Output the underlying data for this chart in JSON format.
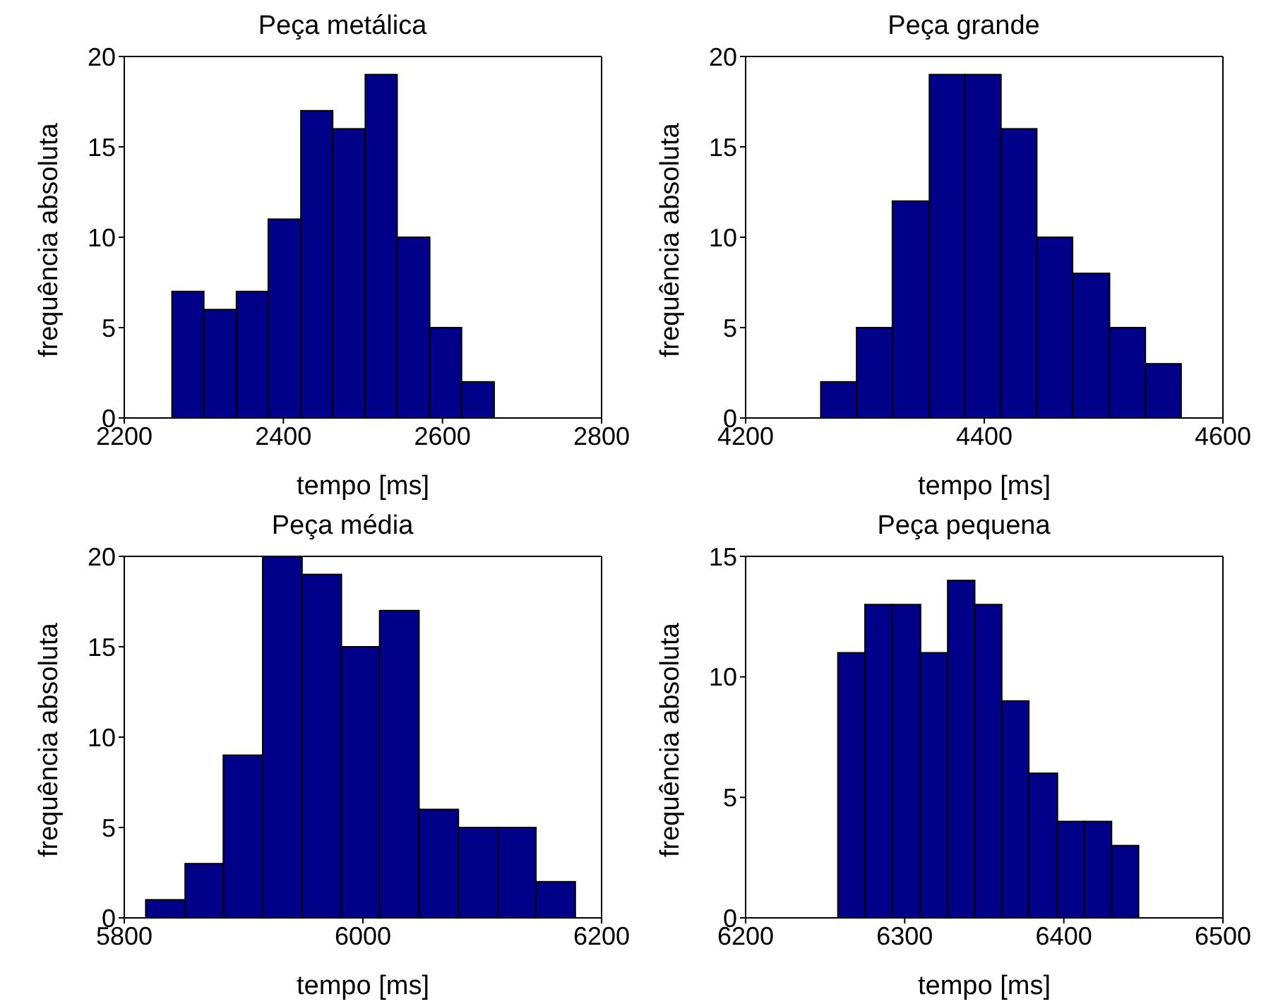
{
  "chart_data": [
    {
      "type": "histogram",
      "title": "Peça metálica",
      "xlabel": "tempo [ms]",
      "ylabel": "frequência absoluta",
      "color": "#000088",
      "bins": [
        2260,
        2300,
        2341,
        2381,
        2422,
        2462,
        2503,
        2543,
        2584,
        2624,
        2665
      ],
      "values": [
        7,
        6,
        7,
        11,
        17,
        16,
        19,
        10,
        5,
        2
      ],
      "xlim": [
        2200,
        2800
      ],
      "xticks": [
        2200,
        2400,
        2600,
        2800
      ],
      "ylim": [
        0,
        20
      ],
      "yticks": [
        0,
        5,
        10,
        15,
        20
      ]
    },
    {
      "type": "histogram",
      "title": "Peça grande",
      "xlabel": "tempo [ms]",
      "ylabel": "frequência absoluta",
      "color": "#000088",
      "bins": [
        4263,
        4293,
        4323,
        4354,
        4384,
        4414,
        4444,
        4474,
        4505,
        4535,
        4565
      ],
      "values": [
        2,
        5,
        12,
        19,
        19,
        16,
        10,
        8,
        5,
        3
      ],
      "xlim": [
        4200,
        4600
      ],
      "xticks": [
        4200,
        4400,
        4600
      ],
      "ylim": [
        0,
        20
      ],
      "yticks": [
        0,
        5,
        10,
        15,
        20
      ]
    },
    {
      "type": "histogram",
      "title": "Peça média",
      "xlabel": "tempo [ms]",
      "ylabel": "frequência absoluta",
      "color": "#000088",
      "bins": [
        5818,
        5851,
        5883,
        5916,
        5949,
        5982,
        6014,
        6047,
        6080,
        6113,
        6145,
        6178
      ],
      "values": [
        1,
        3,
        9,
        20,
        19,
        15,
        17,
        6,
        5,
        5,
        2
      ],
      "xlim": [
        5800,
        6200
      ],
      "xticks": [
        5800,
        6000,
        6200
      ],
      "ylim": [
        0,
        20
      ],
      "yticks": [
        0,
        5,
        10,
        15,
        20
      ]
    },
    {
      "type": "histogram",
      "title": "Peça pequena",
      "xlabel": "tempo [ms]",
      "ylabel": "frequência absoluta",
      "color": "#000088",
      "bins": [
        6258,
        6275,
        6292,
        6310,
        6327,
        6344,
        6361,
        6378,
        6396,
        6413,
        6430,
        6447
      ],
      "values": [
        11,
        13,
        13,
        11,
        14,
        13,
        9,
        6,
        4,
        4,
        3
      ],
      "xlim": [
        6200,
        6500
      ],
      "xticks": [
        6200,
        6300,
        6400,
        6500
      ],
      "ylim": [
        0,
        15
      ],
      "yticks": [
        0,
        5,
        10,
        15
      ]
    }
  ]
}
